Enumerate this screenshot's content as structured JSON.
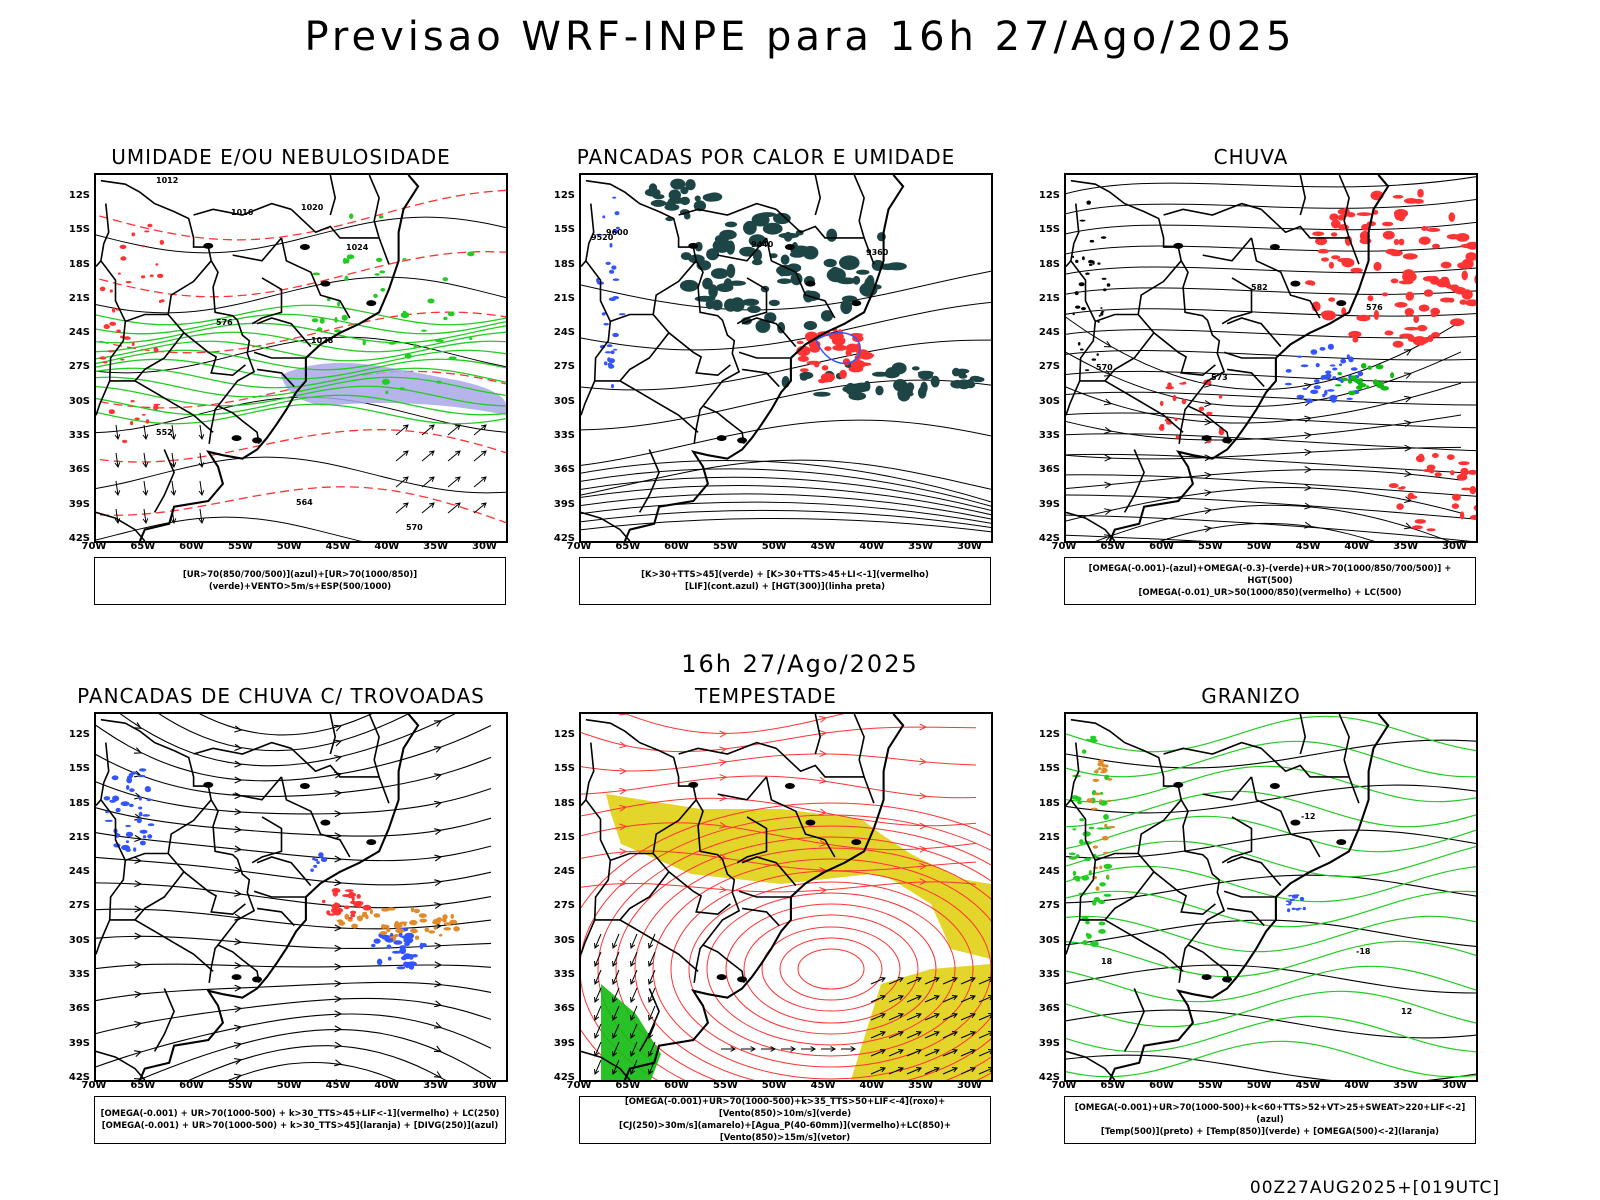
{
  "header": {
    "title": "Previsao WRF-INPE  para 16h 27/Ago/2025"
  },
  "mid_date": "16h 27/Ago/2025",
  "footer_stamp": "00Z27AUG2025+[019UTC]",
  "axes": {
    "lat_ticks": [
      "12S",
      "15S",
      "18S",
      "21S",
      "24S",
      "27S",
      "30S",
      "33S",
      "36S",
      "39S",
      "42S"
    ],
    "lon_ticks": [
      "70W",
      "65W",
      "60W",
      "55W",
      "50W",
      "45W",
      "40W",
      "35W",
      "30W"
    ]
  },
  "colors": {
    "green": "#22cc22",
    "red": "#ff3333",
    "blue": "#3355ff",
    "lavender": "#a8a8e8",
    "darkteal": "#1e4545",
    "yellow": "#e3d52a",
    "orange": "#e08a2a",
    "brightgreen": "#11bb11"
  },
  "panels": [
    {
      "title": "UMIDADE E/OU NEBULOSIDADE",
      "legend": [
        "[UR>70(850/700/500)](azul)+[UR>70(1000/850)](verde)+VENTO>5m/s+ESP(500/1000)"
      ],
      "contour_labels": [
        "1012",
        "1016",
        "1020",
        "1024",
        "1028",
        "552",
        "564",
        "570",
        "576"
      ]
    },
    {
      "title": "PANCADAS POR CALOR E UMIDADE",
      "legend": [
        "[K>30+TTS>45](verde) + [K>30+TTS>45+LI<-1](vermelho)",
        "[LIF](cont.azul) + [HGT(300)](linha preta)"
      ],
      "contour_labels": [
        "9520",
        "9600",
        "9440",
        "9360"
      ]
    },
    {
      "title": "CHUVA",
      "legend": [
        "[OMEGA(-0.001)-(azul)+OMEGA(-0.3)-(verde)+UR>70(1000/850/700/500)] + HGT(500)",
        "[OMEGA(-0.01)_UR>50(1000/850)(vermelho) + LC(500)"
      ],
      "contour_labels": [
        "582",
        "576",
        "573",
        "570"
      ]
    },
    {
      "title": "PANCADAS DE CHUVA C/ TROVOADAS",
      "legend": [
        "[OMEGA(-0.001) + UR>70(1000-500) + k>30_TTS>45+LIF<-1](vermelho) + LC(250)",
        "[OMEGA(-0.001) + UR>70(1000-500) + k>30_TTS>45](laranja) + [DIVG(250)](azul)"
      ],
      "contour_labels": []
    },
    {
      "title": "TEMPESTADE",
      "legend": [
        "[OMEGA(-0.001)+UR>70(1000-500)+k>35_TTS>50+LIF<-4](roxo)+[Vento(850)>10m/s](verde)",
        "[CJ(250)>30m/s](amarelo)+[Agua_P(40-60mm)](vermelho)+LC(850)+[Vento(850)>15m/s](vetor)"
      ],
      "contour_labels": []
    },
    {
      "title": "GRANIZO",
      "legend": [
        "[OMEGA(-0.001)+UR>70(1000-500)+k<60+TTS>52+VT>25+SWEAT>220+LIF<-2](azul)",
        "[Temp(500)](preto) + [Temp(850)](verde) + [OMEGA(500)<-2](laranja)"
      ],
      "contour_labels": [
        "-12",
        "-18",
        "12",
        "18"
      ]
    }
  ]
}
